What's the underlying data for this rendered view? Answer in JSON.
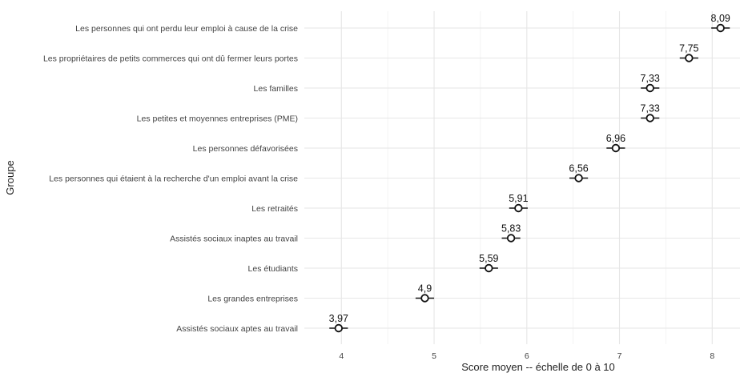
{
  "chart_data": {
    "type": "scatter",
    "xlabel": "Score moyen -- échelle de 0 à 10",
    "ylabel": "Groupe",
    "xlim": [
      3.6,
      8.3
    ],
    "xticks": [
      "4",
      "5",
      "6",
      "7",
      "8"
    ],
    "grid": true,
    "error_half_width": 0.1,
    "points": [
      {
        "group": "Les personnes qui ont perdu leur emploi à cause de la crise",
        "value": 8.09,
        "label": "8,09"
      },
      {
        "group": "Les propriétaires de petits commerces qui ont dû fermer leurs portes",
        "value": 7.75,
        "label": "7,75"
      },
      {
        "group": "Les familles",
        "value": 7.33,
        "label": "7,33"
      },
      {
        "group": "Les petites et moyennes entreprises (PME)",
        "value": 7.33,
        "label": "7,33"
      },
      {
        "group": "Les personnes défavorisées",
        "value": 6.96,
        "label": "6,96"
      },
      {
        "group": "Les personnes qui étaient à la recherche d'un emploi avant la crise",
        "value": 6.56,
        "label": "6,56"
      },
      {
        "group": "Les retraités",
        "value": 5.91,
        "label": "5,91"
      },
      {
        "group": "Assistés sociaux inaptes au travail",
        "value": 5.83,
        "label": "5,83"
      },
      {
        "group": "Les étudiants",
        "value": 5.59,
        "label": "5,59"
      },
      {
        "group": "Les grandes entreprises",
        "value": 4.9,
        "label": "4,9"
      },
      {
        "group": "Assistés sociaux aptes au travail",
        "value": 3.97,
        "label": "3,97"
      }
    ]
  }
}
